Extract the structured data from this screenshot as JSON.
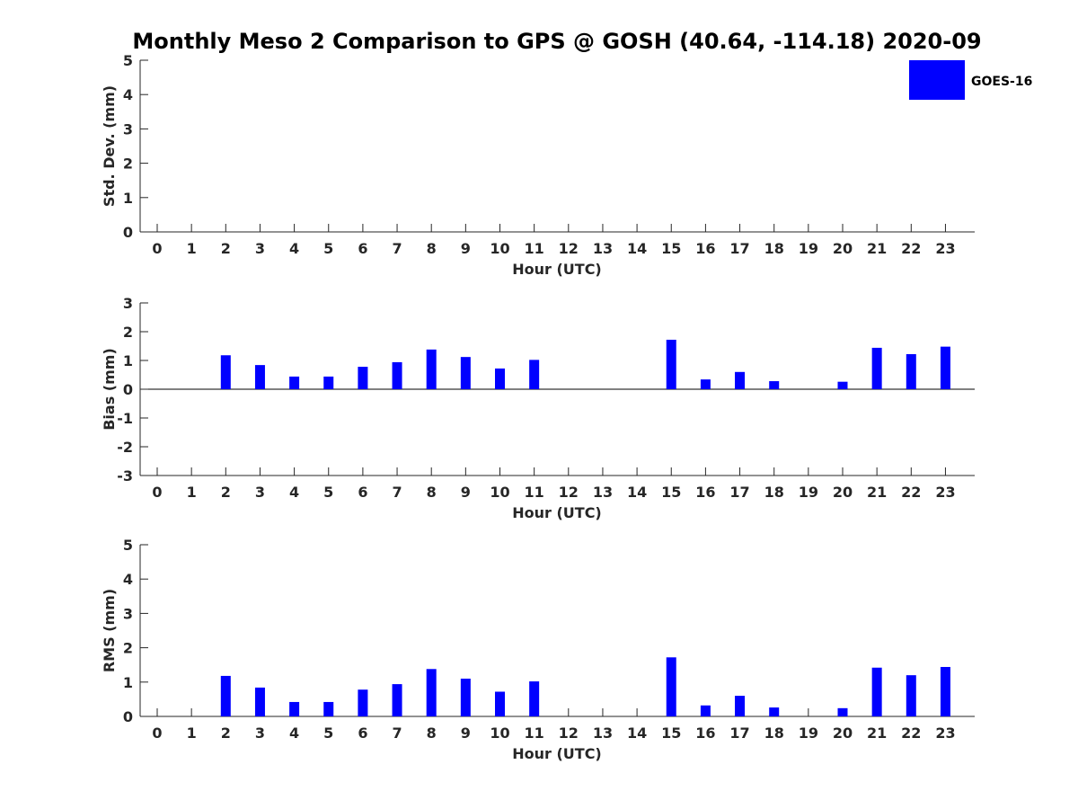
{
  "title": "Monthly Meso 2 Comparison to GPS @ GOSH (40.64, -114.18) 2020-09",
  "colors": {
    "bar": "#0000ff",
    "axis": "#262626",
    "legend_border": "#000000"
  },
  "legend": {
    "label": "GOES-16",
    "placement": "top-right"
  },
  "chart_data": [
    {
      "type": "bar",
      "title": "",
      "xlabel": "Hour (UTC)",
      "ylabel": "Std. Dev. (mm)",
      "ylim": [
        0,
        5
      ],
      "yticks": [
        0,
        1,
        2,
        3,
        4,
        5
      ],
      "categories": [
        "0",
        "1",
        "2",
        "3",
        "4",
        "5",
        "6",
        "7",
        "8",
        "9",
        "10",
        "11",
        "12",
        "13",
        "14",
        "15",
        "16",
        "17",
        "18",
        "19",
        "20",
        "21",
        "22",
        "23"
      ],
      "series": [
        {
          "name": "GOES-16",
          "values": [
            null,
            null,
            null,
            null,
            null,
            null,
            null,
            null,
            null,
            null,
            null,
            null,
            null,
            null,
            null,
            null,
            null,
            null,
            null,
            null,
            null,
            null,
            null,
            null
          ]
        }
      ]
    },
    {
      "type": "bar",
      "title": "",
      "xlabel": "Hour (UTC)",
      "ylabel": "Bias (mm)",
      "ylim": [
        -3,
        3
      ],
      "yticks": [
        -3,
        -2,
        -1,
        0,
        1,
        2,
        3
      ],
      "categories": [
        "0",
        "1",
        "2",
        "3",
        "4",
        "5",
        "6",
        "7",
        "8",
        "9",
        "10",
        "11",
        "12",
        "13",
        "14",
        "15",
        "16",
        "17",
        "18",
        "19",
        "20",
        "21",
        "22",
        "23"
      ],
      "series": [
        {
          "name": "GOES-16",
          "values": [
            null,
            null,
            1.18,
            0.84,
            0.44,
            0.44,
            0.78,
            0.94,
            1.38,
            1.12,
            0.72,
            1.02,
            null,
            null,
            null,
            1.72,
            0.34,
            0.6,
            0.28,
            null,
            0.26,
            1.44,
            1.22,
            1.48
          ]
        }
      ]
    },
    {
      "type": "bar",
      "title": "",
      "xlabel": "Hour (UTC)",
      "ylabel": "RMS (mm)",
      "ylim": [
        0,
        5
      ],
      "yticks": [
        0,
        1,
        2,
        3,
        4,
        5
      ],
      "categories": [
        "0",
        "1",
        "2",
        "3",
        "4",
        "5",
        "6",
        "7",
        "8",
        "9",
        "10",
        "11",
        "12",
        "13",
        "14",
        "15",
        "16",
        "17",
        "18",
        "19",
        "20",
        "21",
        "22",
        "23"
      ],
      "series": [
        {
          "name": "GOES-16",
          "values": [
            null,
            null,
            1.18,
            0.84,
            0.42,
            0.42,
            0.78,
            0.94,
            1.38,
            1.1,
            0.72,
            1.02,
            null,
            null,
            null,
            1.72,
            0.32,
            0.6,
            0.26,
            null,
            0.24,
            1.42,
            1.2,
            1.44
          ]
        }
      ]
    }
  ]
}
